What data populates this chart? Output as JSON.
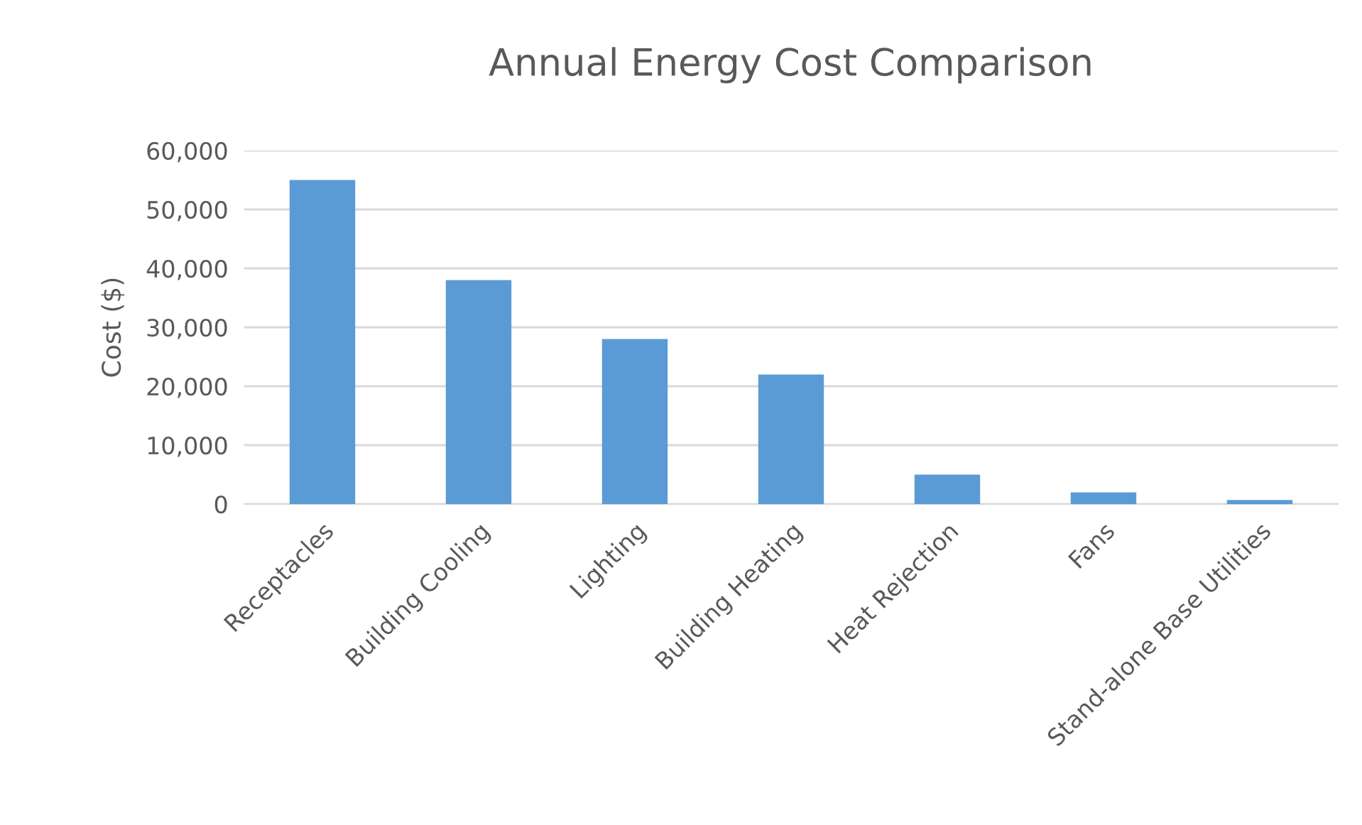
{
  "chart_data": {
    "type": "bar",
    "title": "Annual Energy Cost Comparison",
    "ylabel": "Cost ($)",
    "categories": [
      "Receptacles",
      "Building Cooling",
      "Lighting",
      "Building Heating",
      "Heat Rejection",
      "Fans",
      "Stand-alone Base Utilities"
    ],
    "values": [
      55000,
      38000,
      28000,
      22000,
      5000,
      2000,
      700
    ],
    "color": "#5b9bd5",
    "ylim": [
      0,
      60000
    ],
    "yticks": [
      {
        "value": 0,
        "label": "0"
      },
      {
        "value": 10000,
        "label": "10,000"
      },
      {
        "value": 20000,
        "label": "20,000"
      },
      {
        "value": 30000,
        "label": "30,000"
      },
      {
        "value": 40000,
        "label": "40,000"
      },
      {
        "value": 50000,
        "label": "50,000"
      },
      {
        "value": 60000,
        "label": "60,000"
      }
    ],
    "grid": "y"
  }
}
